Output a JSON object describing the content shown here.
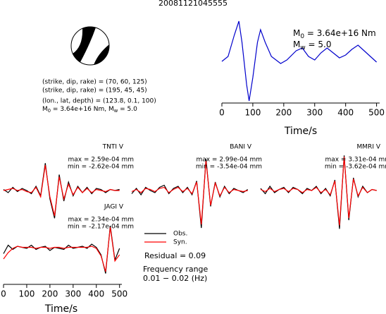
{
  "title": "20081121045555",
  "mechanism": {
    "planes": [
      "(strike, dip, rake) = (70, 60, 125)",
      "(strike, dip, rake) = (195, 45, 45)"
    ],
    "location": "(lon., lat, depth) = (123.8, 0.1, 100)",
    "moment": [
      {
        "symbol": "M",
        "sub": "0",
        "text": " = 3.64e+16 Nm, "
      },
      {
        "symbol": "M",
        "sub": "w",
        "text": " = 5.0"
      }
    ]
  },
  "chart_data": [
    {
      "type": "line",
      "xlabel": "Time/s",
      "xlim": [
        0,
        510
      ],
      "xticks": [
        0,
        100,
        200,
        300,
        400,
        500
      ],
      "ylim": [
        -6,
        6
      ],
      "color": "#0000cc",
      "x": [
        0,
        20,
        40,
        55,
        65,
        80,
        88,
        100,
        115,
        125,
        140,
        160,
        190,
        210,
        240,
        260,
        280,
        300,
        320,
        340,
        360,
        380,
        400,
        420,
        440,
        460,
        480,
        500
      ],
      "values": [
        0.1,
        0.8,
        3.8,
        5.8,
        2.8,
        -3.2,
        -5.5,
        -2.2,
        2.8,
        4.6,
        2.8,
        0.8,
        -0.2,
        0.3,
        1.6,
        2.0,
        0.8,
        0.3,
        1.3,
        2.0,
        1.3,
        0.6,
        1.0,
        1.8,
        2.4,
        1.6,
        0.8,
        0
      ],
      "annotations": [
        {
          "symbol": "M",
          "sub": "0",
          "text": " = 3.64e+16 Nm"
        },
        {
          "symbol": "M",
          "sub": "w",
          "text": " = 5.0"
        }
      ]
    },
    {
      "type": "waveforms",
      "xlabel": "Time/s",
      "xlim": [
        0,
        510
      ],
      "xticks": [
        0,
        100,
        200,
        300,
        400,
        500
      ],
      "ylim": [
        -4,
        4
      ],
      "series": [
        {
          "name": "Obs.",
          "color": "#000000"
        },
        {
          "name": "Syn.",
          "color": "#ff0000"
        }
      ],
      "x": [
        0,
        20,
        40,
        60,
        80,
        100,
        120,
        140,
        160,
        180,
        200,
        220,
        240,
        260,
        280,
        300,
        320,
        340,
        360,
        380,
        400,
        420,
        440,
        460,
        480,
        500
      ],
      "stations": [
        {
          "name": "TNTI V",
          "max": "max = 2.59e-04 mm",
          "min": "min = -2.62e-04 mm",
          "values": [
            [
              0.1,
              -0.2,
              0.3,
              -0.1,
              0.2,
              0.0,
              -0.3,
              0.4,
              -0.5,
              2.59,
              -0.8,
              -2.62,
              1.5,
              -1.0,
              0.8,
              -0.5,
              0.4,
              -0.2,
              0.3,
              -0.3,
              0.2,
              0.1,
              -0.2,
              0.1,
              0.0,
              0.1
            ],
            [
              0.0,
              0.1,
              0.2,
              0.0,
              0.1,
              -0.1,
              -0.2,
              0.3,
              -0.6,
              2.4,
              -0.6,
              -2.4,
              1.3,
              -0.8,
              0.6,
              -0.4,
              0.3,
              -0.2,
              0.2,
              -0.2,
              0.1,
              0.0,
              -0.1,
              0.1,
              0.0,
              0.0
            ]
          ]
        },
        {
          "name": "BANI V",
          "max": "max = 2.99e-04 mm",
          "min": "min = -3.54e-04 mm",
          "values": [
            [
              -0.3,
              0.2,
              -0.4,
              0.3,
              0.0,
              -0.2,
              0.3,
              0.5,
              -0.3,
              0.2,
              0.4,
              -0.2,
              0.3,
              -0.4,
              0.9,
              -3.54,
              2.99,
              -1.5,
              0.8,
              -0.6,
              0.4,
              -0.3,
              0.2,
              0.0,
              -0.2,
              0.1
            ],
            [
              -0.1,
              0.1,
              -0.2,
              0.2,
              0.1,
              -0.1,
              0.2,
              0.3,
              -0.2,
              0.1,
              0.3,
              -0.1,
              0.2,
              -0.3,
              0.8,
              -3.2,
              2.8,
              -1.4,
              0.7,
              -0.5,
              0.3,
              -0.2,
              0.1,
              0.0,
              -0.1,
              0.0
            ]
          ]
        },
        {
          "name": "MMRI V",
          "max": "max = 3.31e-04 mm",
          "min": "min = -3.62e-04 mm",
          "values": [
            [
              0.2,
              -0.3,
              0.4,
              -0.2,
              0.1,
              0.3,
              -0.2,
              0.3,
              0.1,
              -0.3,
              0.2,
              0.0,
              0.4,
              -0.3,
              0.2,
              -0.5,
              1.0,
              -3.62,
              3.31,
              -2.8,
              1.2,
              -0.6,
              0.4,
              -0.2,
              0.1,
              0.0
            ],
            [
              0.1,
              -0.1,
              0.2,
              -0.1,
              0.1,
              0.2,
              -0.1,
              0.2,
              0.1,
              -0.2,
              0.1,
              0.0,
              0.3,
              -0.2,
              0.1,
              -0.4,
              0.9,
              -3.3,
              3.2,
              -2.6,
              1.1,
              -0.5,
              0.3,
              -0.2,
              0.1,
              0.0
            ]
          ]
        },
        {
          "name": "JAGI V",
          "max": "max = 2.34e-04 mm",
          "min": "min = -2.17e-04 mm",
          "values": [
            [
              -0.3,
              0.5,
              0.1,
              0.4,
              0.3,
              0.2,
              0.5,
              0.1,
              0.3,
              0.4,
              0.0,
              0.3,
              0.2,
              0.1,
              0.5,
              0.2,
              0.3,
              0.4,
              0.2,
              0.6,
              0.3,
              -0.4,
              -2.17,
              2.34,
              -0.9,
              0.2
            ],
            [
              -0.8,
              -0.2,
              0.2,
              0.4,
              0.3,
              0.3,
              0.3,
              0.2,
              0.3,
              0.3,
              0.2,
              0.3,
              0.3,
              0.2,
              0.3,
              0.3,
              0.3,
              0.3,
              0.3,
              0.4,
              0.2,
              -0.5,
              -2.0,
              2.2,
              -1.0,
              -0.4
            ]
          ]
        }
      ],
      "residual": "Residual = 0.09",
      "frequency_title": "Frequency range",
      "frequency_range": "0.01 − 0.02 (Hz)"
    }
  ]
}
